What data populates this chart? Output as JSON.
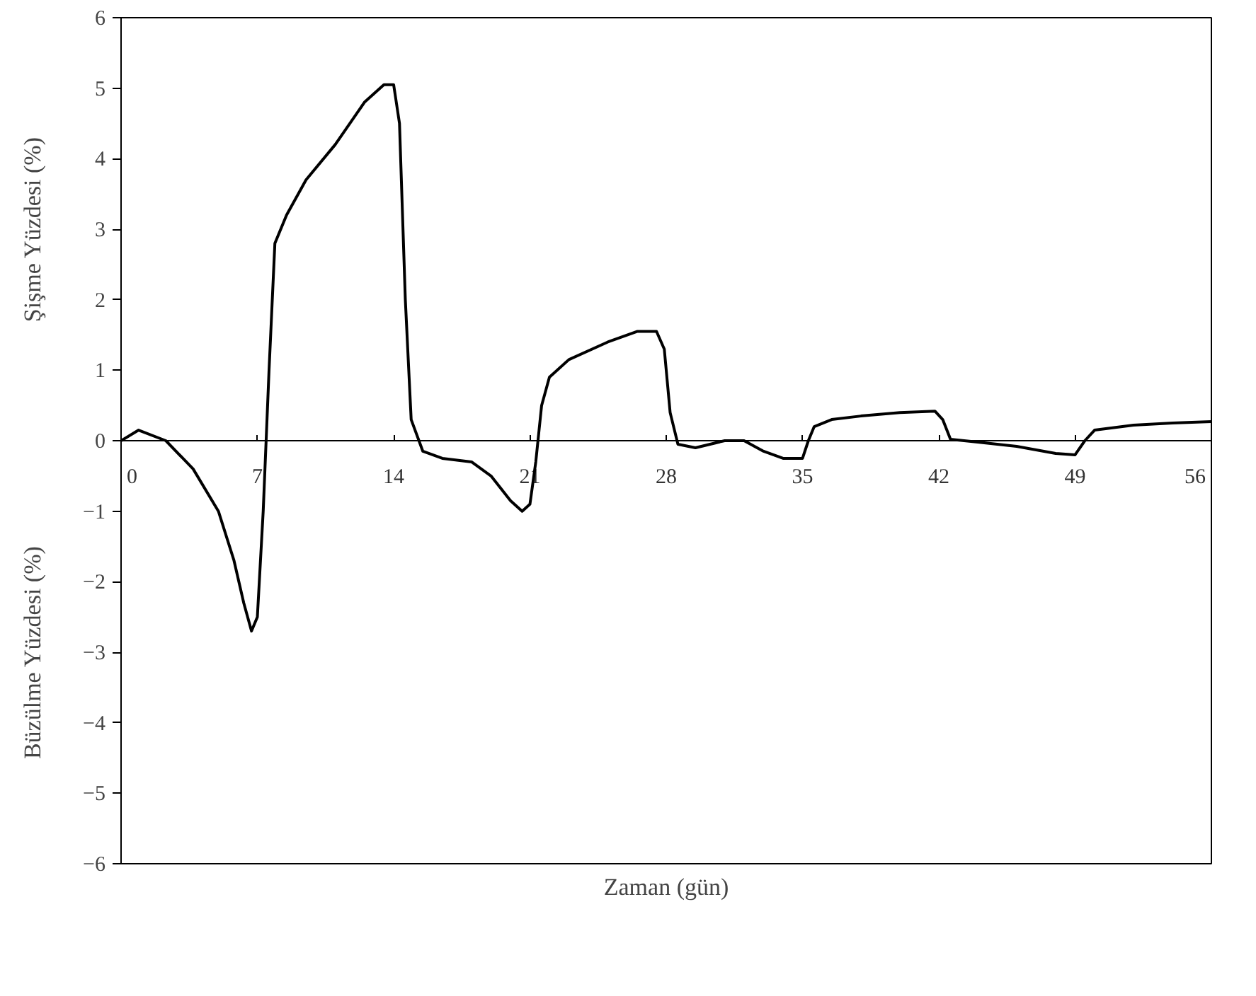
{
  "chart_data": {
    "type": "line",
    "xlabel": "Zaman (gün)",
    "ylabel": "Şişme Yüzdesi (%)",
    "annotations": [
      "Büzülme Yüzdesi (%)"
    ],
    "xlim": [
      0,
      56
    ],
    "xticks": [
      0,
      7,
      14,
      21,
      28,
      35,
      42,
      49,
      56
    ],
    "ylim": [
      -6,
      6
    ],
    "yticks": [
      -6,
      -5,
      -4,
      -3,
      -2,
      -1,
      0,
      1,
      2,
      3,
      4,
      5,
      6
    ],
    "grid": false,
    "marker": "none",
    "line_style": "solid",
    "series": [
      {
        "color": "#000000",
        "x": [
          0,
          0.9,
          2.3,
          3.7,
          5.0,
          5.8,
          6.3,
          6.7,
          7.0,
          7.3,
          7.6,
          7.9,
          8.5,
          9.5,
          11,
          12.5,
          13.5,
          14,
          14.3,
          14.6,
          14.9,
          15.5,
          16.5,
          18,
          19,
          20,
          20.6,
          21,
          21.3,
          21.6,
          22,
          23,
          25,
          26.5,
          27.5,
          27.9,
          28.2,
          28.6,
          29.5,
          31,
          32,
          33,
          34,
          35,
          35.3,
          35.6,
          36.5,
          38,
          40,
          41.8,
          42.2,
          42.6,
          44,
          46,
          48,
          49,
          49.5,
          50,
          52,
          54,
          56
        ],
        "values": [
          0,
          0.15,
          0,
          -0.4,
          -1.0,
          -1.7,
          -2.3,
          -2.7,
          -2.5,
          -1.0,
          1.0,
          2.8,
          3.2,
          3.7,
          4.2,
          4.8,
          5.05,
          5.05,
          4.5,
          2.0,
          0.3,
          -0.15,
          -0.25,
          -0.3,
          -0.5,
          -0.85,
          -1.0,
          -0.9,
          -0.3,
          0.5,
          0.9,
          1.15,
          1.4,
          1.55,
          1.55,
          1.3,
          0.4,
          -0.05,
          -0.1,
          0,
          0,
          -0.15,
          -0.25,
          -0.25,
          0,
          0.2,
          0.3,
          0.35,
          0.4,
          0.42,
          0.3,
          0.02,
          -0.02,
          -0.08,
          -0.18,
          -0.2,
          0,
          0.15,
          0.22,
          0.25,
          0.27
        ]
      }
    ]
  }
}
